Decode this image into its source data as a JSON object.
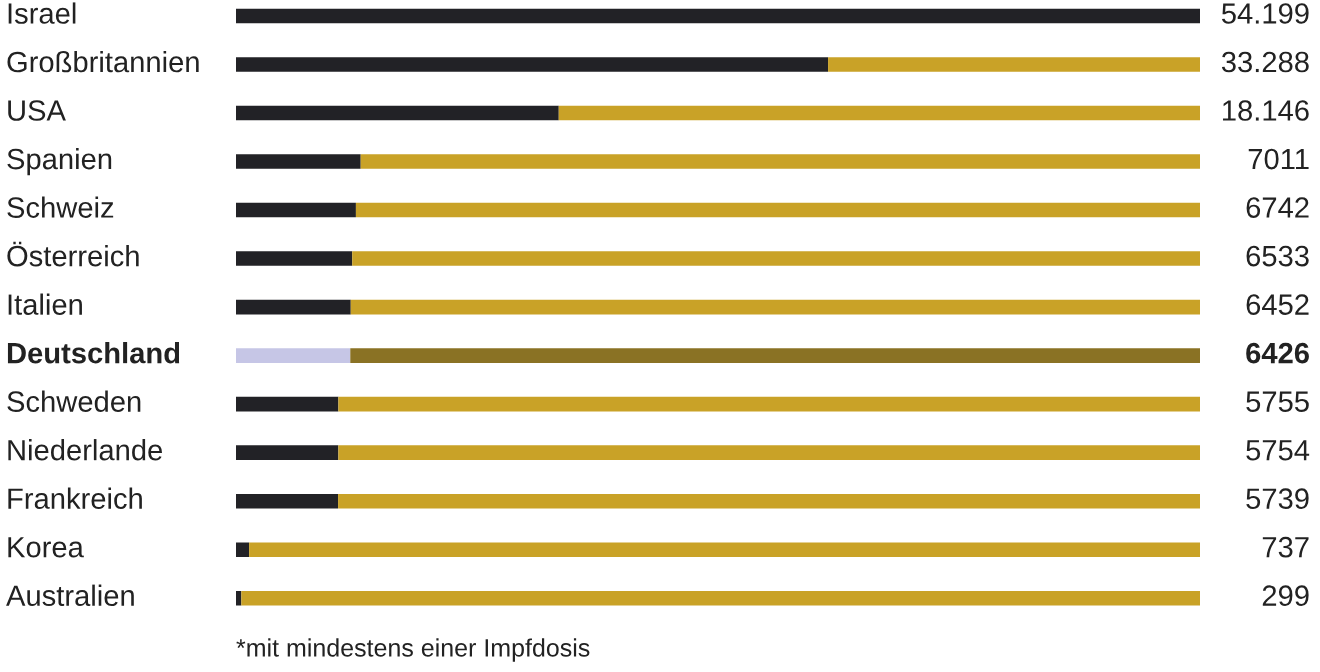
{
  "chart_data": {
    "type": "bar",
    "orientation": "horizontal",
    "stacked": true,
    "categories": [
      "Israel",
      "Großbritannien",
      "USA",
      "Spanien",
      "Schweiz",
      "Österreich",
      "Italien",
      "Deutschland",
      "Schweden",
      "Niederlande",
      "Frankreich",
      "Korea",
      "Australien"
    ],
    "series": [
      {
        "color": "#222226",
        "colors": [
          "#222226",
          "#222226",
          "#222226",
          "#222226",
          "#222226",
          "#222226",
          "#222226",
          "#c6c6e6",
          "#222226",
          "#222226",
          "#222226",
          "#222226",
          "#222226"
        ],
        "values": [
          54199,
          33288,
          18146,
          7011,
          6742,
          6533,
          6452,
          6426,
          5755,
          5754,
          5739,
          737,
          299
        ],
        "value_labels": [
          "54.199",
          "33.288",
          "18.146",
          "7011",
          "6742",
          "6533",
          "6452",
          "6426",
          "5755",
          "5754",
          "5739",
          "737",
          "299"
        ]
      },
      {
        "color": "#c9a227",
        "colors": [
          "#c9a227",
          "#c9a227",
          "#c9a227",
          "#c9a227",
          "#c9a227",
          "#c9a227",
          "#c9a227",
          "#8a7224",
          "#c9a227",
          "#c9a227",
          "#c9a227",
          "#c9a227",
          "#c9a227"
        ],
        "values": [
          0,
          20911,
          36053,
          47188,
          47457,
          47666,
          47747,
          47773,
          48444,
          48445,
          48460,
          53462,
          53900
        ]
      }
    ],
    "annotations": [
      "*mit mindestens einer Impfdosis"
    ],
    "legend": false
  }
}
